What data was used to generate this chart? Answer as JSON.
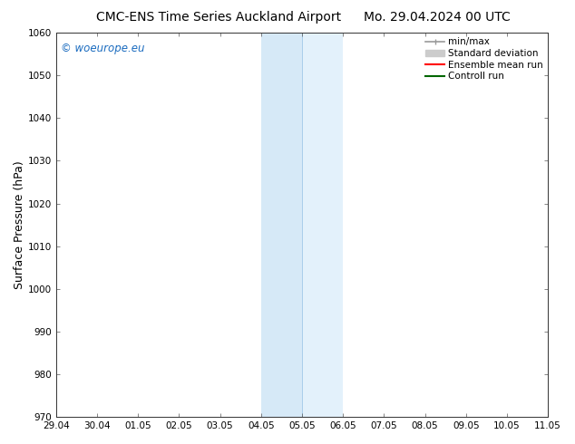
{
  "title_left": "CMC-ENS Time Series Auckland Airport",
  "title_right": "Mo. 29.04.2024 00 UTC",
  "ylabel": "Surface Pressure (hPa)",
  "ylim_bottom": 970,
  "ylim_top": 1060,
  "yticks": [
    970,
    980,
    990,
    1000,
    1010,
    1020,
    1030,
    1040,
    1050,
    1060
  ],
  "xtick_labels": [
    "29.04",
    "30.04",
    "01.05",
    "02.05",
    "03.05",
    "04.05",
    "05.05",
    "06.05",
    "07.05",
    "08.05",
    "09.05",
    "10.05",
    "11.05"
  ],
  "xtick_positions": [
    0,
    1,
    2,
    3,
    4,
    5,
    6,
    7,
    8,
    9,
    10,
    11,
    12
  ],
  "shaded_region_1_start": 5,
  "shaded_region_1_end": 6,
  "shaded_region_2_start": 6,
  "shaded_region_2_end": 7,
  "shaded_color_1": "#d6e9f7",
  "shaded_color_2": "#e3f1fb",
  "watermark_text": "© woeurope.eu",
  "watermark_color": "#1a6bbf",
  "bg_color": "#ffffff",
  "plot_bg_color": "#ffffff",
  "legend_items": [
    {
      "label": "min/max",
      "color": "#aaaaaa"
    },
    {
      "label": "Standard deviation",
      "color": "#cccccc"
    },
    {
      "label": "Ensemble mean run",
      "color": "#ff0000"
    },
    {
      "label": "Controll run",
      "color": "#006600"
    }
  ],
  "title_fontsize": 10,
  "tick_fontsize": 7.5,
  "ylabel_fontsize": 9,
  "legend_fontsize": 7.5
}
